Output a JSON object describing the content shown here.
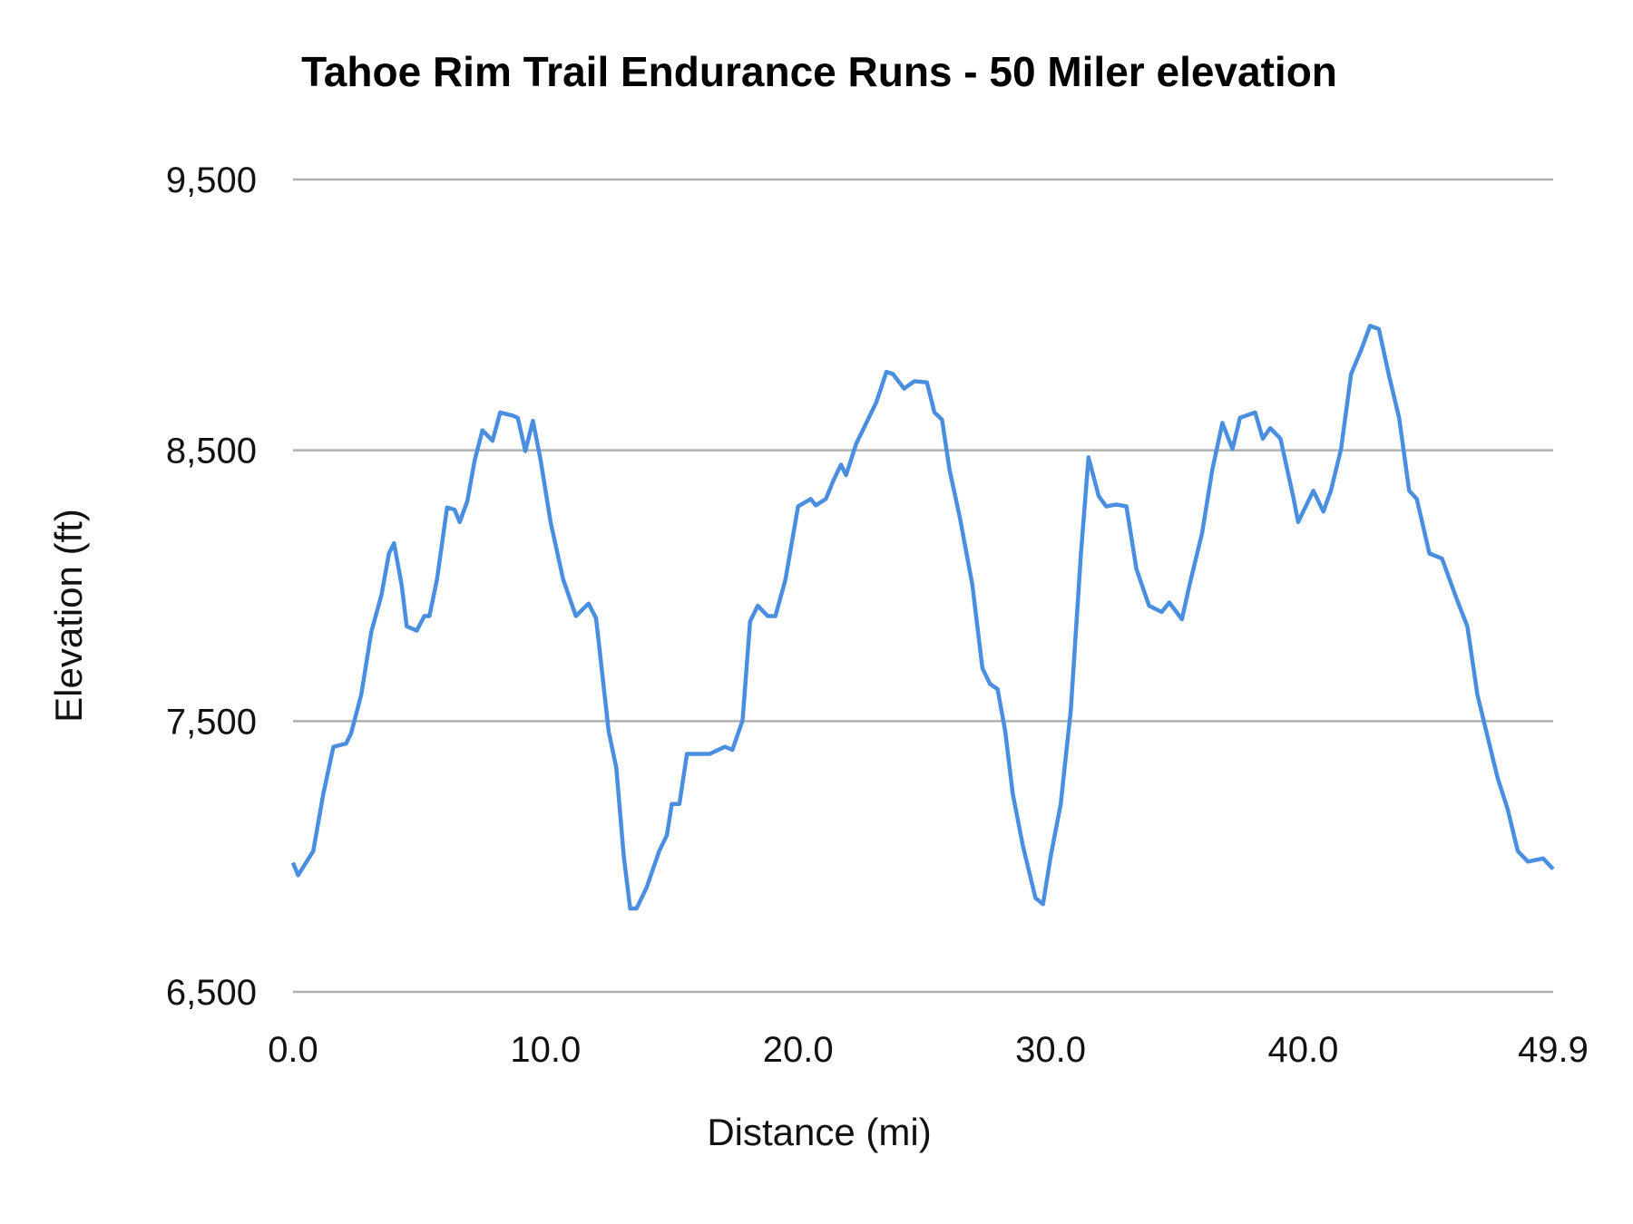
{
  "chart_data": {
    "type": "line",
    "title": "Tahoe Rim Trail Endurance Runs - 50 Miler elevation",
    "xlabel": "Distance (mi)",
    "ylabel": "Elevation (ft)",
    "xlim": [
      0,
      49.9
    ],
    "ylim": [
      6500,
      9500
    ],
    "x_ticks": [
      "0.0",
      "10.0",
      "20.0",
      "30.0",
      "40.0",
      "49.9"
    ],
    "x_tick_values": [
      0,
      10,
      20,
      30,
      40,
      49.9
    ],
    "y_ticks": [
      "9,500",
      "8,500",
      "7,500",
      "6,500"
    ],
    "y_tick_values": [
      9500,
      8500,
      7500,
      6500
    ],
    "grid": "horizontal",
    "legend": "none",
    "line_color": "#4a8ee0",
    "grid_color": "#b0b0b0",
    "series": [
      {
        "x": [
          0,
          0.2,
          0.8,
          1.2,
          1.6,
          2.1,
          2.3,
          2.7,
          3.1,
          3.5,
          3.8,
          4.0,
          4.3,
          4.5,
          4.9,
          5.2,
          5.4,
          5.7,
          6.1,
          6.4,
          6.6,
          6.9,
          7.2,
          7.5,
          7.9,
          8.2,
          8.7,
          8.9,
          9.2,
          9.5,
          9.8,
          10.2,
          10.7,
          11.2,
          11.7,
          12.0,
          12.5,
          12.8,
          13.1,
          13.35,
          13.6,
          14.0,
          14.5,
          14.8,
          15.0,
          15.3,
          15.6,
          15.9,
          16.5,
          17.1,
          17.4,
          17.8,
          18.1,
          18.4,
          18.8,
          19.1,
          19.5,
          20.0,
          20.5,
          20.7,
          21.1,
          21.4,
          21.7,
          21.9,
          22.3,
          22.7,
          23.1,
          23.5,
          23.75,
          24.2,
          24.6,
          25.1,
          25.4,
          25.7,
          26.0,
          26.4,
          26.9,
          27.3,
          27.6,
          27.9,
          28.2,
          28.5,
          28.9,
          29.4,
          29.7,
          30.0,
          30.4,
          30.8,
          31.2,
          31.5,
          31.9,
          32.2,
          32.6,
          33.0,
          33.4,
          33.9,
          34.4,
          34.7,
          35.2,
          35.5,
          36.0,
          36.4,
          36.8,
          37.2,
          37.5,
          38.1,
          38.4,
          38.7,
          39.1,
          39.6,
          39.8,
          40.4,
          40.8,
          41.1,
          41.5,
          41.9,
          42.3,
          42.65,
          43.0,
          43.4,
          43.8,
          44.2,
          44.5,
          45.0,
          45.5,
          46.1,
          46.5,
          46.9,
          47.3,
          47.7,
          48.1,
          48.5,
          48.9,
          49.5,
          49.9
        ],
        "y": [
          6977,
          6931,
          7020,
          7232,
          7405,
          7417,
          7455,
          7598,
          7830,
          7965,
          8120,
          8157,
          8003,
          7850,
          7834,
          7888,
          7888,
          8023,
          8289,
          8281,
          8235,
          8312,
          8466,
          8574,
          8535,
          8640,
          8628,
          8620,
          8497,
          8609,
          8466,
          8235,
          8023,
          7888,
          7934,
          7880,
          7463,
          7328,
          7000,
          6808,
          6808,
          6885,
          7020,
          7078,
          7194,
          7194,
          7379,
          7379,
          7379,
          7405,
          7394,
          7502,
          7868,
          7926,
          7888,
          7888,
          8023,
          8293,
          8320,
          8297,
          8320,
          8389,
          8447,
          8408,
          8524,
          8601,
          8678,
          8790,
          8782,
          8728,
          8755,
          8751,
          8640,
          8613,
          8427,
          8254,
          8003,
          7695,
          7637,
          7618,
          7463,
          7232,
          7039,
          6847,
          6824,
          7000,
          7194,
          7541,
          8119,
          8474,
          8331,
          8293,
          8300,
          8293,
          8061,
          7926,
          7903,
          7938,
          7876,
          8003,
          8196,
          8427,
          8601,
          8505,
          8620,
          8640,
          8543,
          8582,
          8543,
          8331,
          8235,
          8351,
          8274,
          8351,
          8505,
          8782,
          8871,
          8960,
          8948,
          8775,
          8620,
          8351,
          8320,
          8119,
          8100,
          7946,
          7850,
          7598,
          7444,
          7290,
          7174,
          7020,
          6981,
          6993,
          6954
        ]
      }
    ]
  }
}
